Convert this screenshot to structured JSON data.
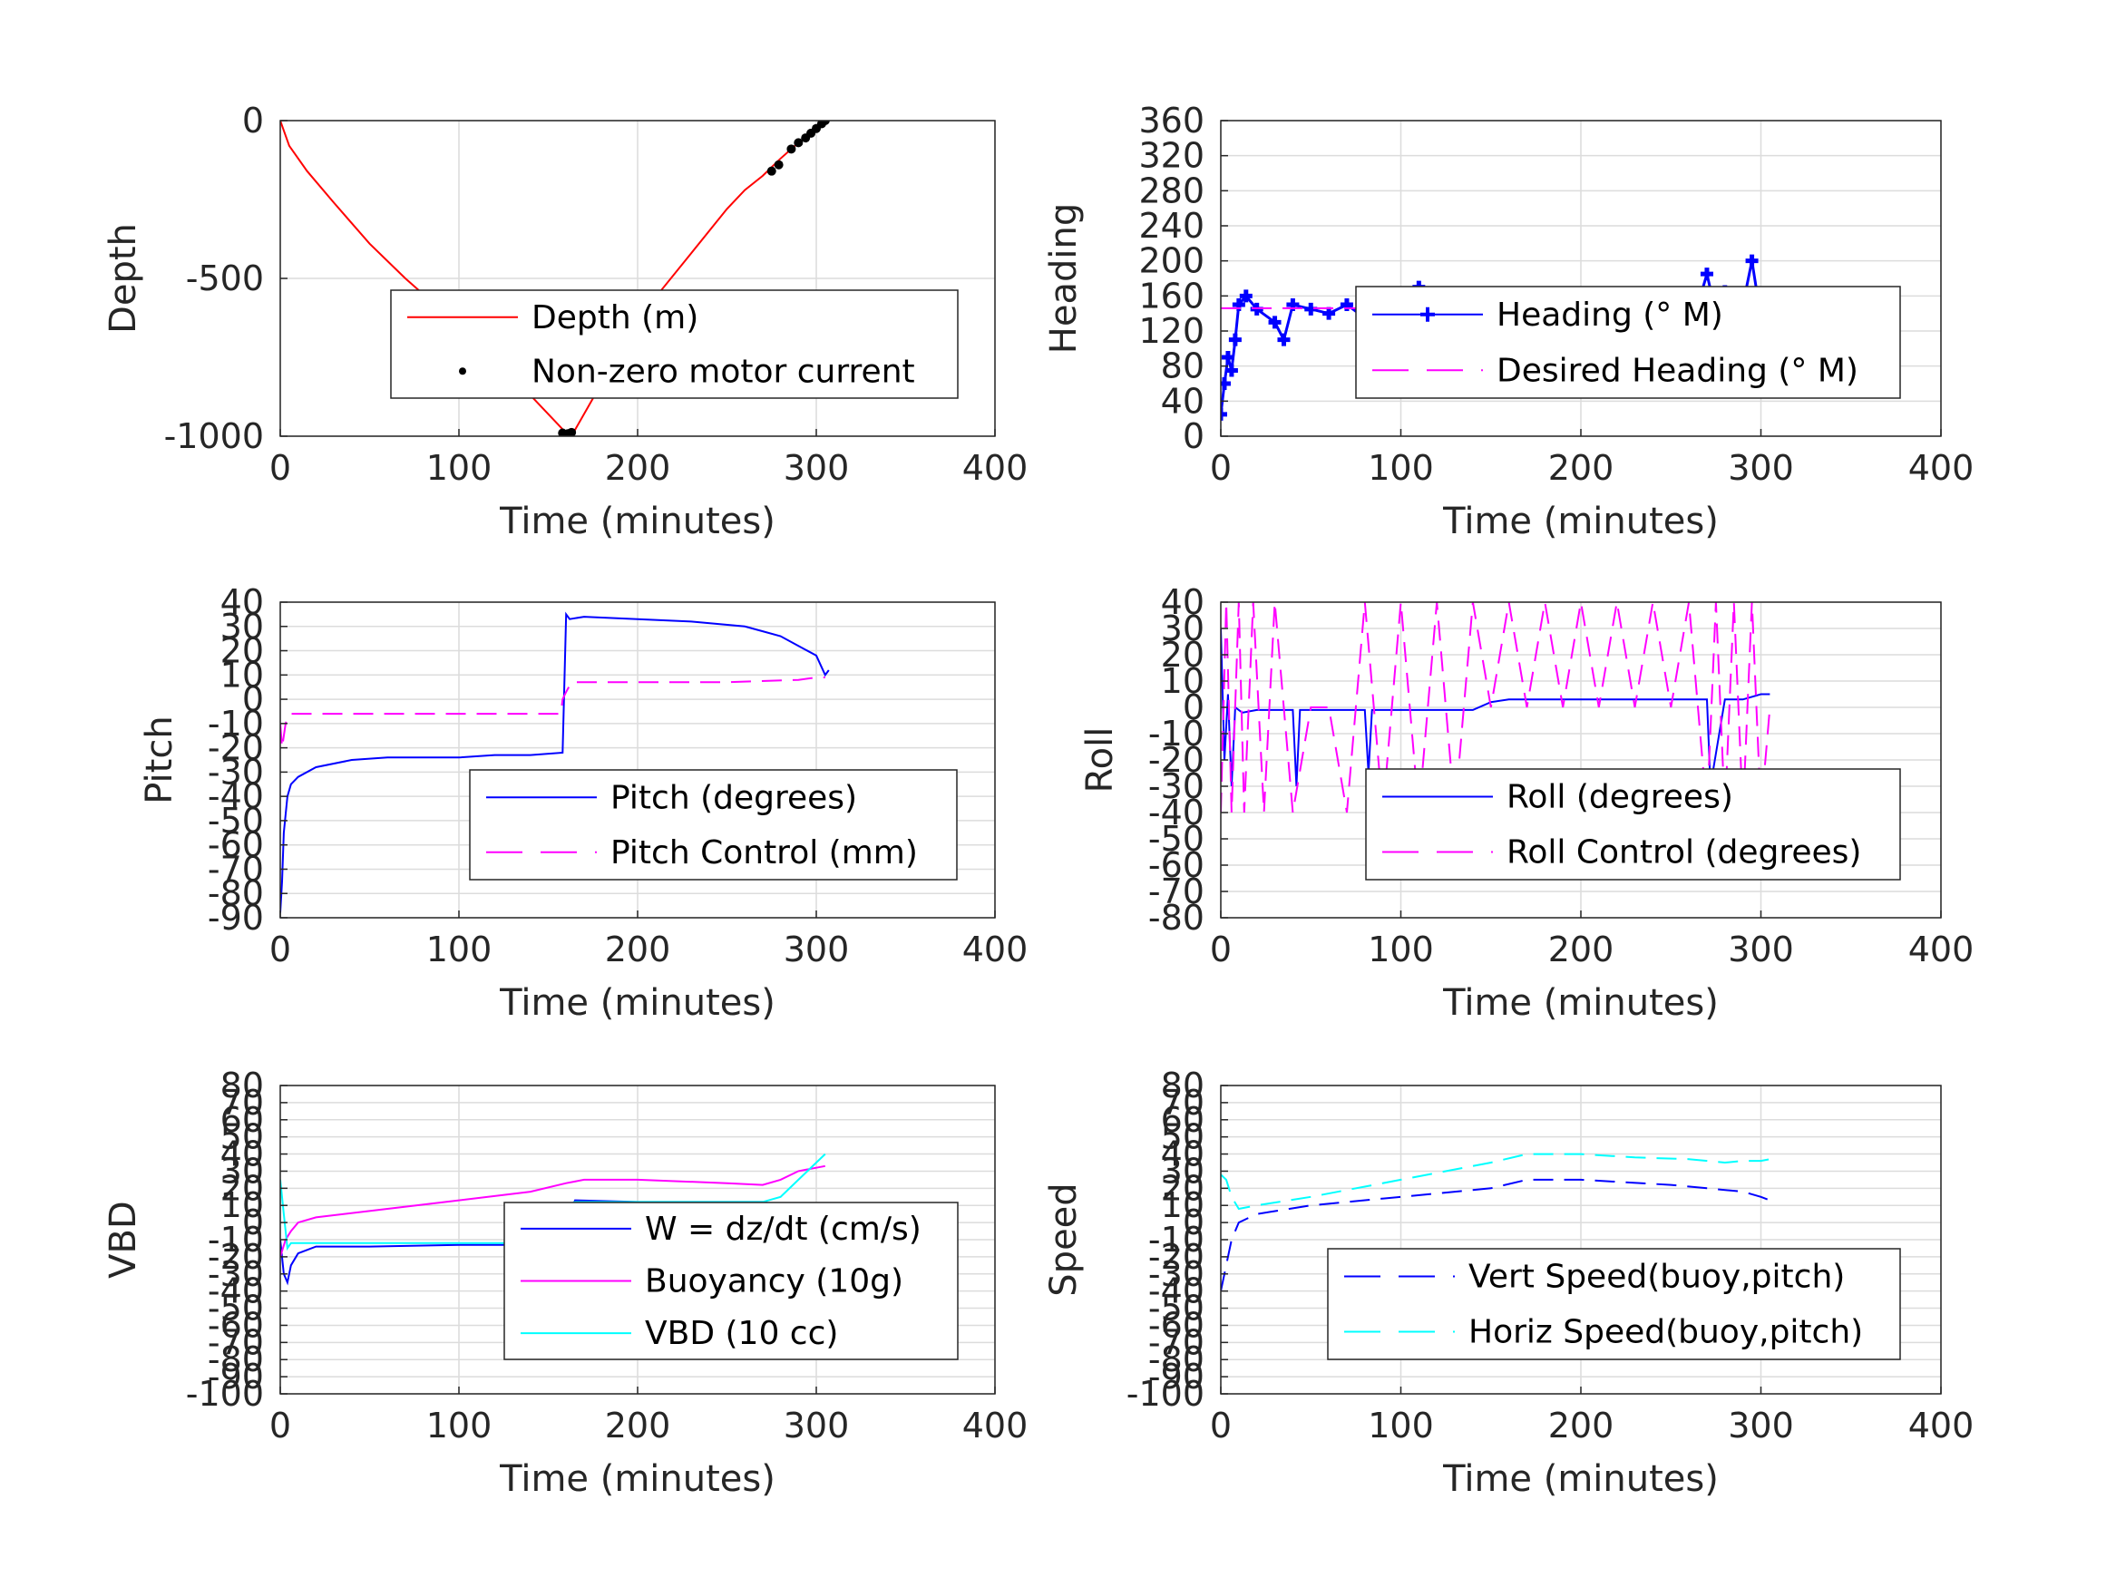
{
  "chart_data": [
    {
      "type": "line",
      "xlabel": "Time (minutes)",
      "ylabel": "Depth",
      "xlim": [
        0,
        400
      ],
      "ylim": [
        -1000,
        0
      ],
      "xticks": [
        0,
        100,
        200,
        300,
        400
      ],
      "yticks": [
        -1000,
        -500,
        0
      ],
      "ytick_labels": [
        "-1000",
        "-500",
        "0"
      ],
      "grid": true,
      "legend_position": "lower-right",
      "series": [
        {
          "name": "Depth (m)",
          "color": "#ff0000",
          "style": "solid",
          "x": [
            0,
            5,
            15,
            30,
            50,
            70,
            90,
            110,
            130,
            145,
            155,
            160,
            165,
            175,
            190,
            210,
            230,
            250,
            260,
            270,
            280,
            290,
            300,
            305
          ],
          "y": [
            0,
            -80,
            -160,
            -260,
            -390,
            -500,
            -600,
            -700,
            -810,
            -900,
            -960,
            -990,
            -980,
            -880,
            -740,
            -560,
            -420,
            -280,
            -220,
            -175,
            -120,
            -70,
            -25,
            0
          ]
        },
        {
          "name": "Non-zero motor current",
          "color": "#000000",
          "style": "points",
          "x": [
            158,
            161,
            163,
            275,
            279,
            286,
            290,
            294,
            297,
            300,
            303,
            305
          ],
          "y": [
            -990,
            -992,
            -988,
            -160,
            -140,
            -90,
            -70,
            -55,
            -40,
            -25,
            -10,
            0
          ]
        }
      ]
    },
    {
      "type": "line",
      "xlabel": "Time (minutes)",
      "ylabel": "Heading",
      "xlim": [
        0,
        400
      ],
      "ylim": [
        0,
        360
      ],
      "xticks": [
        0,
        100,
        200,
        300,
        400
      ],
      "yticks": [
        0,
        40,
        80,
        120,
        160,
        200,
        240,
        280,
        320,
        360
      ],
      "ytick_labels": [
        "0",
        "40",
        "80",
        "120",
        "160",
        "200",
        "240",
        "280",
        "320",
        "360"
      ],
      "grid": true,
      "legend_position": "upper-right",
      "series": [
        {
          "name": "Heading (° M)",
          "color": "#0000ff",
          "style": "markers",
          "x": [
            0,
            2,
            4,
            6,
            8,
            10,
            14,
            20,
            30,
            35,
            40,
            50,
            60,
            70,
            80,
            90,
            100,
            110,
            120,
            130,
            140,
            150,
            160,
            170,
            180,
            190,
            200,
            210,
            220,
            230,
            240,
            250,
            260,
            265,
            270,
            275,
            280,
            285,
            290,
            295,
            300,
            305
          ],
          "y": [
            25,
            60,
            90,
            75,
            110,
            150,
            160,
            145,
            130,
            110,
            150,
            145,
            140,
            150,
            135,
            150,
            140,
            170,
            130,
            160,
            145,
            140,
            150,
            145,
            135,
            150,
            140,
            145,
            140,
            135,
            150,
            145,
            130,
            150,
            185,
            140,
            165,
            130,
            150,
            200,
            135,
            150
          ]
        },
        {
          "name": "Desired Heading (° M)",
          "color": "#ff00ff",
          "style": "dashed",
          "x": [
            0,
            300
          ],
          "y": [
            146,
            146
          ]
        }
      ]
    },
    {
      "type": "line",
      "xlabel": "Time (minutes)",
      "ylabel": "Pitch",
      "xlim": [
        0,
        400
      ],
      "ylim": [
        -90,
        40
      ],
      "xticks": [
        0,
        100,
        200,
        300,
        400
      ],
      "yticks": [
        -90,
        -80,
        -70,
        -60,
        -50,
        -40,
        -30,
        -20,
        -10,
        0,
        10,
        20,
        30,
        40
      ],
      "ytick_labels": [
        "-90",
        "-80",
        "-70",
        "-60",
        "-50",
        "-40",
        "-30",
        "-20",
        "-10",
        "0",
        "10",
        "20",
        "30",
        "40"
      ],
      "grid": true,
      "legend_position": "lower-right",
      "series": [
        {
          "name": "Pitch (degrees)",
          "color": "#0000ff",
          "style": "solid",
          "x": [
            0,
            1,
            2,
            4,
            6,
            10,
            20,
            40,
            60,
            80,
            100,
            120,
            140,
            158,
            160,
            162,
            170,
            200,
            230,
            260,
            270,
            280,
            290,
            300,
            305,
            307
          ],
          "y": [
            -88,
            -75,
            -55,
            -40,
            -35,
            -32,
            -28,
            -25,
            -24,
            -24,
            -24,
            -23,
            -23,
            -22,
            35,
            33,
            34,
            33,
            32,
            30,
            28,
            26,
            22,
            18,
            10,
            12
          ]
        },
        {
          "name": "Pitch Control (mm)",
          "color": "#ff00ff",
          "style": "dashed",
          "x": [
            0,
            1,
            3,
            5,
            10,
            50,
            100,
            157,
            158,
            160,
            163,
            200,
            250,
            290,
            300,
            305
          ],
          "y": [
            -10,
            -20,
            -10,
            -6,
            -6,
            -6,
            -6,
            -6,
            0,
            3,
            7,
            7,
            7,
            8,
            9,
            9
          ]
        }
      ]
    },
    {
      "type": "line",
      "xlabel": "Time (minutes)",
      "ylabel": "Roll",
      "xlim": [
        0,
        400
      ],
      "ylim": [
        -80,
        40
      ],
      "xticks": [
        0,
        100,
        200,
        300,
        400
      ],
      "yticks": [
        -80,
        -70,
        -60,
        -50,
        -40,
        -30,
        -20,
        -10,
        0,
        10,
        20,
        30,
        40
      ],
      "ytick_labels": [
        "-80",
        "-70",
        "-60",
        "-50",
        "-40",
        "-30",
        "-20",
        "-10",
        "0",
        "10",
        "20",
        "30",
        "40"
      ],
      "grid": true,
      "legend_position": "lower-right",
      "series": [
        {
          "name": "Roll (degrees)",
          "color": "#0000ff",
          "style": "solid",
          "x": [
            0,
            2,
            4,
            6,
            8,
            10,
            12,
            20,
            30,
            40,
            42,
            44,
            60,
            80,
            82,
            84,
            100,
            120,
            140,
            150,
            160,
            180,
            200,
            220,
            240,
            260,
            270,
            272,
            280,
            290,
            300,
            305
          ],
          "y": [
            30,
            -20,
            5,
            -30,
            0,
            -1,
            -2,
            -1,
            -1,
            -1,
            -30,
            -1,
            -1,
            -1,
            -25,
            -1,
            -1,
            -1,
            -1,
            2,
            3,
            3,
            3,
            3,
            3,
            3,
            3,
            -30,
            3,
            3,
            5,
            5
          ]
        },
        {
          "name": "Roll Control (degrees)",
          "color": "#ff00ff",
          "style": "dashed",
          "x": [
            0,
            3,
            6,
            10,
            13,
            18,
            24,
            30,
            40,
            50,
            60,
            70,
            80,
            90,
            100,
            110,
            120,
            130,
            140,
            150,
            160,
            170,
            180,
            190,
            200,
            210,
            220,
            230,
            240,
            250,
            260,
            270,
            275,
            280,
            285,
            290,
            295,
            300,
            305
          ],
          "y": [
            -40,
            40,
            -40,
            40,
            -40,
            40,
            -40,
            40,
            -40,
            0,
            0,
            -40,
            40,
            -40,
            40,
            -40,
            40,
            -40,
            40,
            0,
            40,
            0,
            40,
            0,
            40,
            0,
            40,
            0,
            40,
            0,
            40,
            -40,
            40,
            -40,
            40,
            -40,
            40,
            -40,
            0
          ]
        }
      ]
    },
    {
      "type": "line",
      "xlabel": "Time (minutes)",
      "ylabel": "VBD",
      "xlim": [
        0,
        400
      ],
      "ylim": [
        -100,
        80
      ],
      "xticks": [
        0,
        100,
        200,
        300,
        400
      ],
      "yticks": [
        -100,
        -90,
        -80,
        -70,
        -60,
        -50,
        -40,
        -30,
        -20,
        -10,
        0,
        10,
        20,
        30,
        40,
        50,
        60,
        70,
        80
      ],
      "ytick_labels": [
        "-100",
        "-90",
        "-80",
        "-70",
        "-60",
        "-50",
        "-40",
        "-30",
        "-20",
        "-10",
        "0",
        "10",
        "20",
        "30",
        "40",
        "50",
        "60",
        "70",
        "80"
      ],
      "grid": true,
      "legend_position": "lower-right",
      "series": [
        {
          "name": "W = dz/dt (cm/s)",
          "color": "#0000ff",
          "style": "solid",
          "x": [
            0,
            2,
            4,
            6,
            10,
            20,
            50,
            100,
            150,
            158,
            160,
            165,
            200,
            250,
            270,
            280,
            290,
            300,
            305
          ],
          "y": [
            -10,
            -30,
            -35,
            -25,
            -18,
            -14,
            -14,
            -13,
            -13,
            -12,
            0,
            13,
            12,
            12,
            12,
            10,
            9,
            8,
            8
          ]
        },
        {
          "name": "Buoyancy (10g)",
          "color": "#ff00ff",
          "style": "solid",
          "x": [
            0,
            3,
            6,
            10,
            20,
            60,
            100,
            140,
            160,
            170,
            200,
            250,
            270,
            280,
            290,
            300,
            305
          ],
          "y": [
            -20,
            -10,
            -5,
            0,
            3,
            8,
            13,
            18,
            23,
            25,
            25,
            23,
            22,
            25,
            30,
            32,
            33
          ]
        },
        {
          "name": "VBD (10 cc)",
          "color": "#00ffff",
          "style": "solid",
          "x": [
            0,
            2,
            4,
            6,
            10,
            50,
            100,
            150,
            158,
            160,
            165,
            200,
            250,
            270,
            280,
            290,
            300,
            305
          ],
          "y": [
            25,
            5,
            -15,
            -12,
            -12,
            -12,
            -12,
            -12,
            -12,
            10,
            12,
            12,
            12,
            12,
            15,
            25,
            35,
            40
          ]
        }
      ]
    },
    {
      "type": "line",
      "xlabel": "Time (minutes)",
      "ylabel": "Speed",
      "xlim": [
        0,
        400
      ],
      "ylim": [
        -100,
        80
      ],
      "xticks": [
        0,
        100,
        200,
        300,
        400
      ],
      "yticks": [
        -100,
        -90,
        -80,
        -70,
        -60,
        -50,
        -40,
        -30,
        -20,
        -10,
        0,
        10,
        20,
        30,
        40,
        50,
        60,
        70,
        80
      ],
      "ytick_labels": [
        "-100",
        "-90",
        "-80",
        "-70",
        "-60",
        "-50",
        "-40",
        "-30",
        "-20",
        "-10",
        "0",
        "10",
        "20",
        "30",
        "40",
        "50",
        "60",
        "70",
        "80"
      ],
      "grid": true,
      "legend_position": "lower-right",
      "series": [
        {
          "name": "Vert Speed(buoy,pitch)",
          "color": "#0000ff",
          "style": "dashed",
          "x": [
            0,
            2,
            4,
            6,
            10,
            20,
            50,
            100,
            150,
            170,
            200,
            250,
            270,
            290,
            300,
            305
          ],
          "y": [
            -40,
            -30,
            -20,
            -10,
            0,
            5,
            10,
            15,
            20,
            25,
            25,
            22,
            20,
            18,
            15,
            13
          ]
        },
        {
          "name": "Horiz Speed(buoy,pitch)",
          "color": "#00ffff",
          "style": "dashed",
          "x": [
            0,
            3,
            6,
            10,
            20,
            50,
            100,
            150,
            170,
            200,
            230,
            260,
            280,
            290,
            300,
            305
          ],
          "y": [
            28,
            25,
            15,
            8,
            10,
            15,
            25,
            35,
            40,
            40,
            38,
            37,
            35,
            36,
            36,
            37
          ]
        }
      ]
    }
  ]
}
